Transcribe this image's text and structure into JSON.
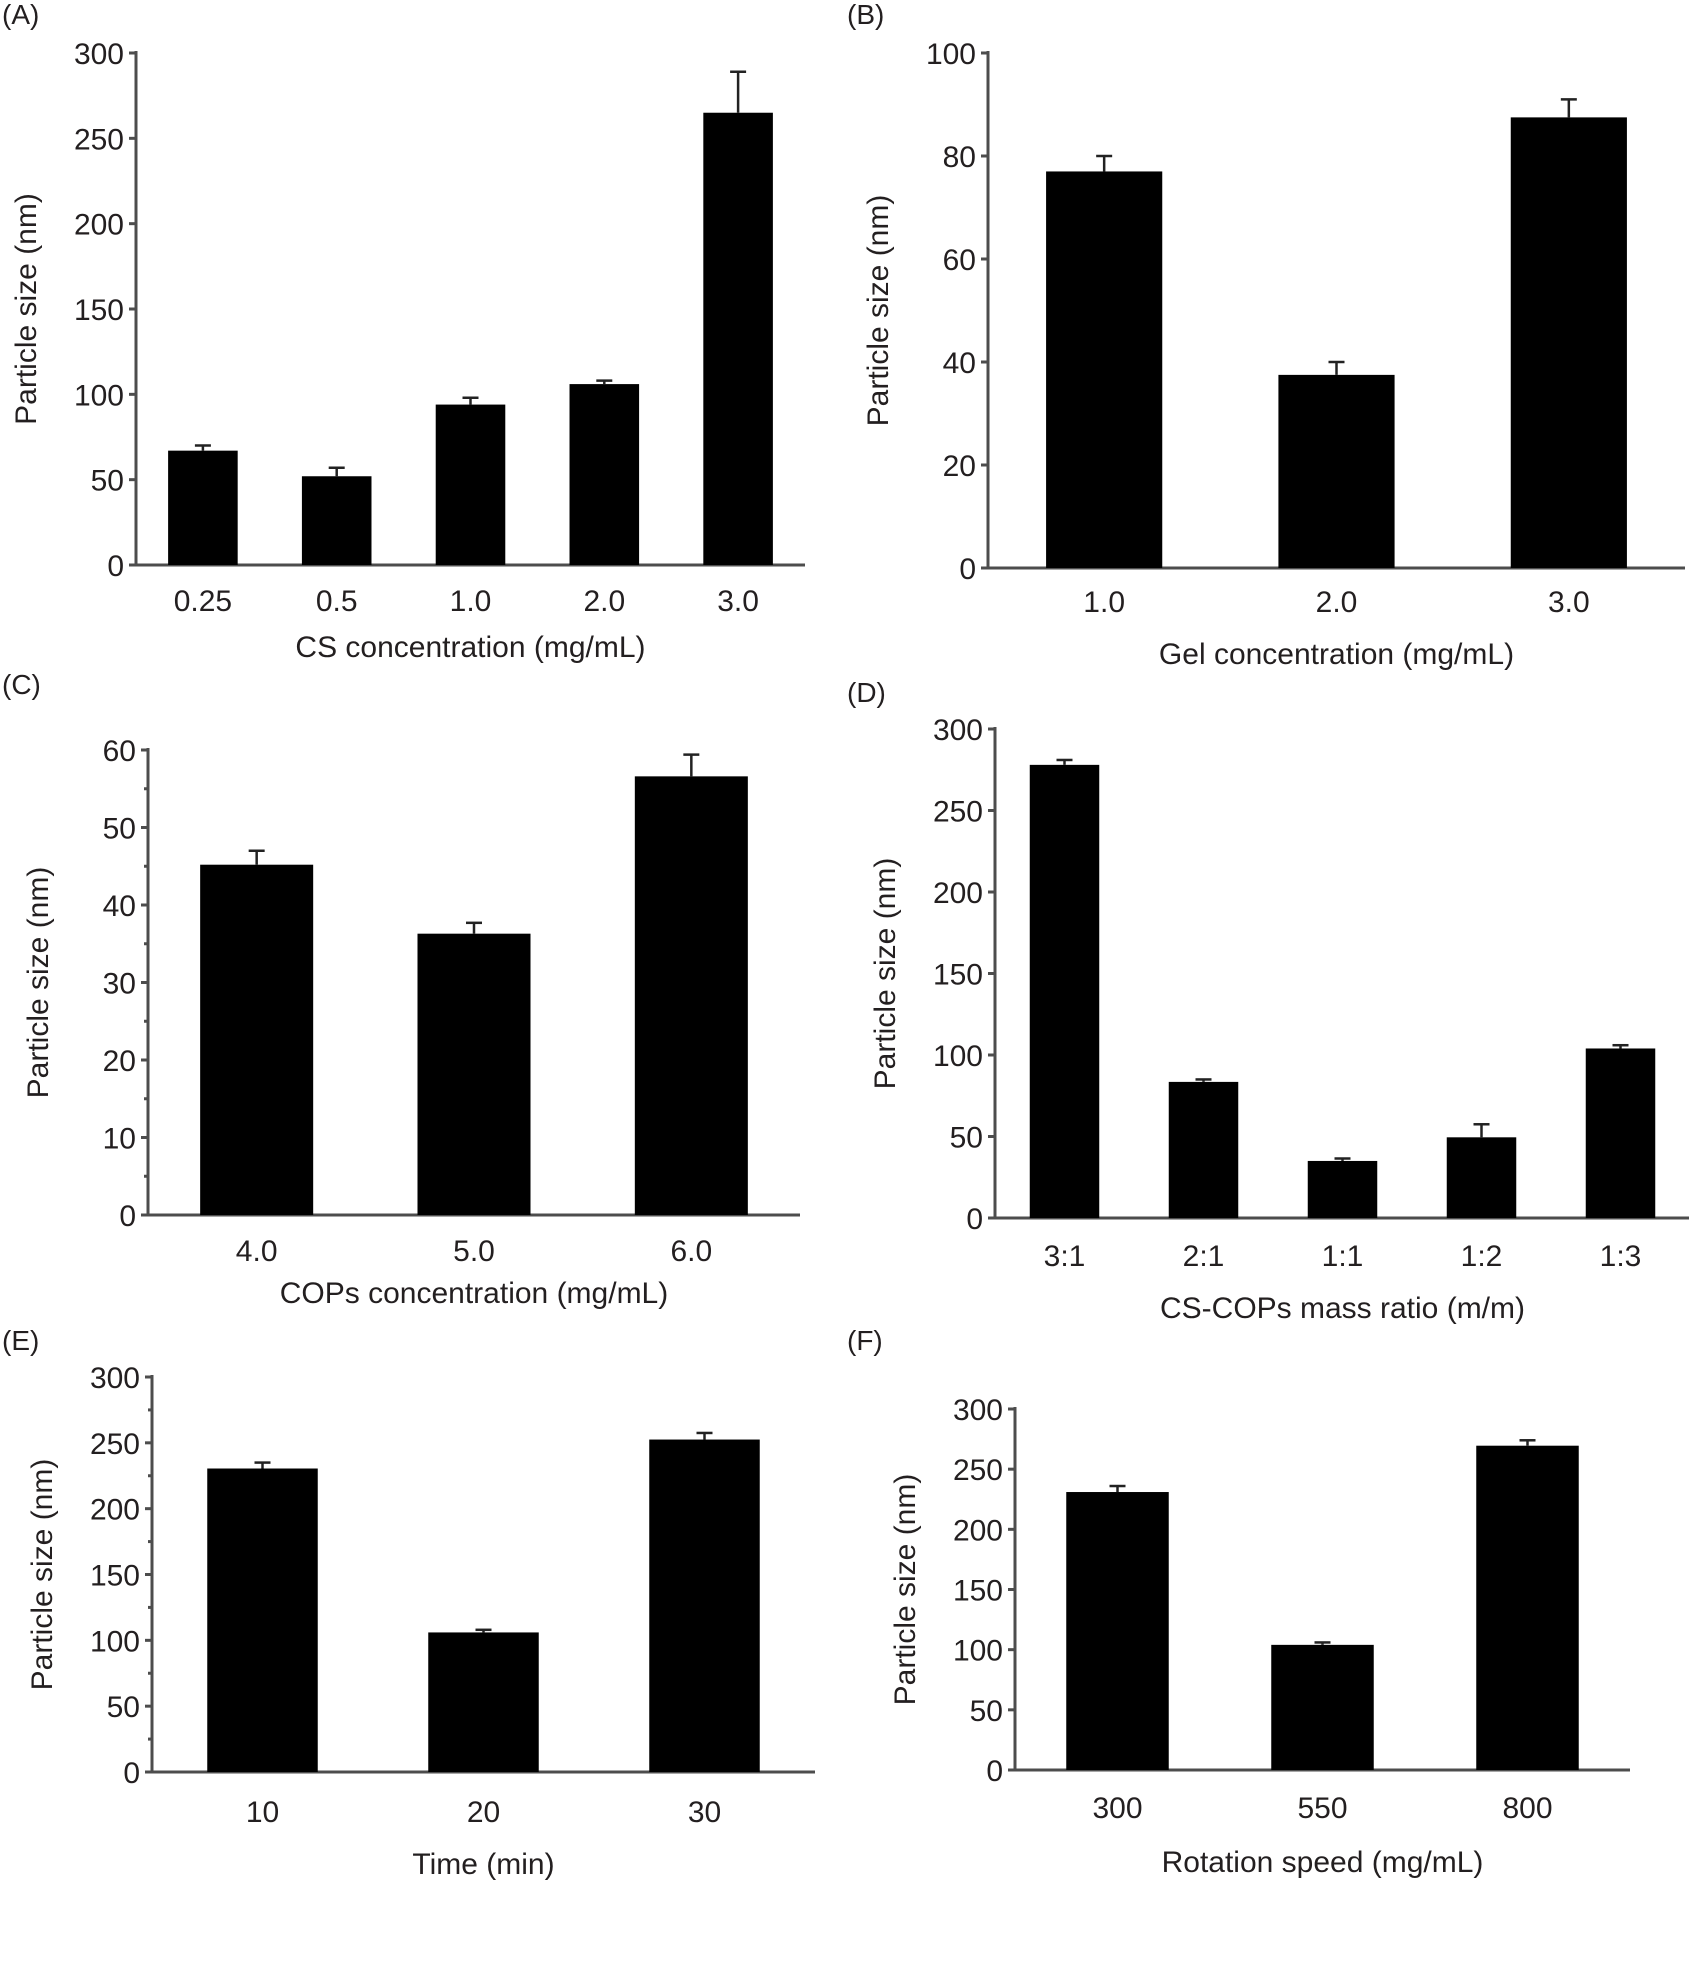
{
  "figure": {
    "colors": {
      "bar": "#000000",
      "axis": "#4d4d4d",
      "text": "#231f20",
      "background": "#ffffff"
    }
  },
  "chart_data": [
    {
      "panel": "(A)",
      "type": "bar",
      "title": "",
      "xlabel": "CS concentration (mg/mL)",
      "ylabel": "Particle size (nm)",
      "categories": [
        "0.25",
        "0.5",
        "1.0",
        "2.0",
        "3.0"
      ],
      "values": [
        67,
        52,
        94,
        106,
        265
      ],
      "errors": [
        3,
        5,
        4,
        2,
        24
      ],
      "ylim": [
        0,
        300
      ],
      "yticks": [
        0,
        50,
        100,
        150,
        200,
        250,
        300
      ],
      "minor_ticks": false,
      "grid": false
    },
    {
      "panel": "(B)",
      "type": "bar",
      "title": "",
      "xlabel": "Gel concentration (mg/mL)",
      "ylabel": "Particle size (nm)",
      "categories": [
        "1.0",
        "2.0",
        "3.0"
      ],
      "values": [
        77,
        37.5,
        87.5
      ],
      "errors": [
        3,
        2.5,
        3.5
      ],
      "ylim": [
        0,
        100
      ],
      "yticks": [
        0,
        20,
        40,
        60,
        80,
        100
      ],
      "minor_ticks": false,
      "grid": false
    },
    {
      "panel": "(C)",
      "type": "bar",
      "title": "",
      "xlabel": "COPs concentration (mg/mL)",
      "ylabel": "Particle size (nm)",
      "categories": [
        "4.0",
        "5.0",
        "6.0"
      ],
      "values": [
        45.2,
        36.3,
        56.6
      ],
      "errors": [
        1.8,
        1.4,
        2.8
      ],
      "ylim": [
        0,
        60
      ],
      "yticks": [
        0,
        10,
        20,
        30,
        40,
        50,
        60
      ],
      "minor_ticks": true,
      "grid": false
    },
    {
      "panel": "(D)",
      "type": "bar",
      "title": "",
      "xlabel": "CS-COPs mass ratio (m/m)",
      "ylabel": "Particle size (nm)",
      "categories": [
        "3:1",
        "2:1",
        "1:1",
        "1:2",
        "1:3"
      ],
      "values": [
        278,
        83.5,
        35,
        49.5,
        104
      ],
      "errors": [
        3,
        1.5,
        1.5,
        8,
        2
      ],
      "ylim": [
        0,
        300
      ],
      "yticks": [
        0,
        50,
        100,
        150,
        200,
        250,
        300
      ],
      "minor_ticks": false,
      "grid": false
    },
    {
      "panel": "(E)",
      "type": "bar",
      "title": "",
      "xlabel": "Time (min)",
      "ylabel": "Particle size (nm)",
      "categories": [
        "10",
        "20",
        "30"
      ],
      "values": [
        230.5,
        106,
        252.5
      ],
      "errors": [
        4.5,
        2,
        5
      ],
      "ylim": [
        0,
        300
      ],
      "yticks": [
        0,
        50,
        100,
        150,
        200,
        250,
        300
      ],
      "minor_ticks": true,
      "grid": false
    },
    {
      "panel": "(F)",
      "type": "bar",
      "title": "",
      "xlabel": "Rotation speed (mg/mL)",
      "ylabel": "Particle size (nm)",
      "categories": [
        "300",
        "550",
        "800"
      ],
      "values": [
        231,
        104,
        269.5
      ],
      "errors": [
        5,
        2,
        4.5
      ],
      "ylim": [
        0,
        300
      ],
      "yticks": [
        0,
        50,
        100,
        150,
        200,
        250,
        300
      ],
      "minor_ticks": false,
      "grid": false
    }
  ]
}
